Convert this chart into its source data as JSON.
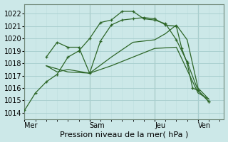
{
  "xlabel": "Pression niveau de la mer( hPa )",
  "background_color": "#cce8e8",
  "grid_color_major": "#aad0d0",
  "grid_color_minor": "#c0e0e0",
  "line_color": "#2d6628",
  "ylim": [
    1013.5,
    1022.8
  ],
  "yticks": [
    1014,
    1015,
    1016,
    1017,
    1018,
    1019,
    1020,
    1021,
    1022
  ],
  "xtick_labels": [
    "Mer",
    "Sam",
    "Jeu",
    "Ven"
  ],
  "vline_positions": [
    0,
    3,
    6,
    8
  ],
  "series": [
    {
      "x": [
        0,
        0.5,
        1.0,
        1.5,
        2.0,
        2.5,
        3.0,
        3.5,
        4.0,
        4.5,
        5.0,
        5.5,
        6.0,
        6.5,
        7.0,
        7.5,
        8.0,
        8.5
      ],
      "y": [
        1014.2,
        1015.6,
        1016.5,
        1017.1,
        1018.5,
        1019.0,
        1020.0,
        1021.3,
        1021.5,
        1022.2,
        1022.2,
        1021.6,
        1021.5,
        1021.2,
        1019.9,
        1018.1,
        1015.8,
        1014.9
      ],
      "markers": true
    },
    {
      "x": [
        1.0,
        1.5,
        2.0,
        2.5,
        3.0,
        3.5,
        4.0,
        4.5,
        5.0,
        5.5,
        6.0,
        6.5,
        7.0,
        7.25,
        7.5,
        7.75,
        8.0,
        8.5
      ],
      "y": [
        1018.5,
        1019.7,
        1019.3,
        1019.3,
        1017.2,
        1019.8,
        1021.1,
        1021.5,
        1021.6,
        1021.7,
        1021.6,
        1021.1,
        1021.0,
        1019.2,
        1018.0,
        1016.0,
        1015.8,
        1014.9
      ],
      "markers": true
    },
    {
      "x": [
        1.0,
        1.5,
        2.0,
        3.0,
        4.0,
        5.0,
        6.0,
        6.5,
        7.0,
        7.5,
        8.0,
        8.5
      ],
      "y": [
        1017.8,
        1017.3,
        1017.5,
        1017.2,
        1018.5,
        1019.7,
        1019.9,
        1020.4,
        1021.1,
        1019.9,
        1016.0,
        1015.1
      ],
      "markers": false
    },
    {
      "x": [
        1.0,
        2.0,
        3.0,
        4.0,
        5.0,
        6.0,
        7.0,
        8.0,
        8.5
      ],
      "y": [
        1017.8,
        1017.3,
        1017.2,
        1017.8,
        1018.5,
        1019.2,
        1019.3,
        1015.6,
        1015.1
      ],
      "markers": false
    }
  ],
  "xlabel_fontsize": 8,
  "tick_fontsize": 7,
  "xlim": [
    0,
    9.2
  ]
}
